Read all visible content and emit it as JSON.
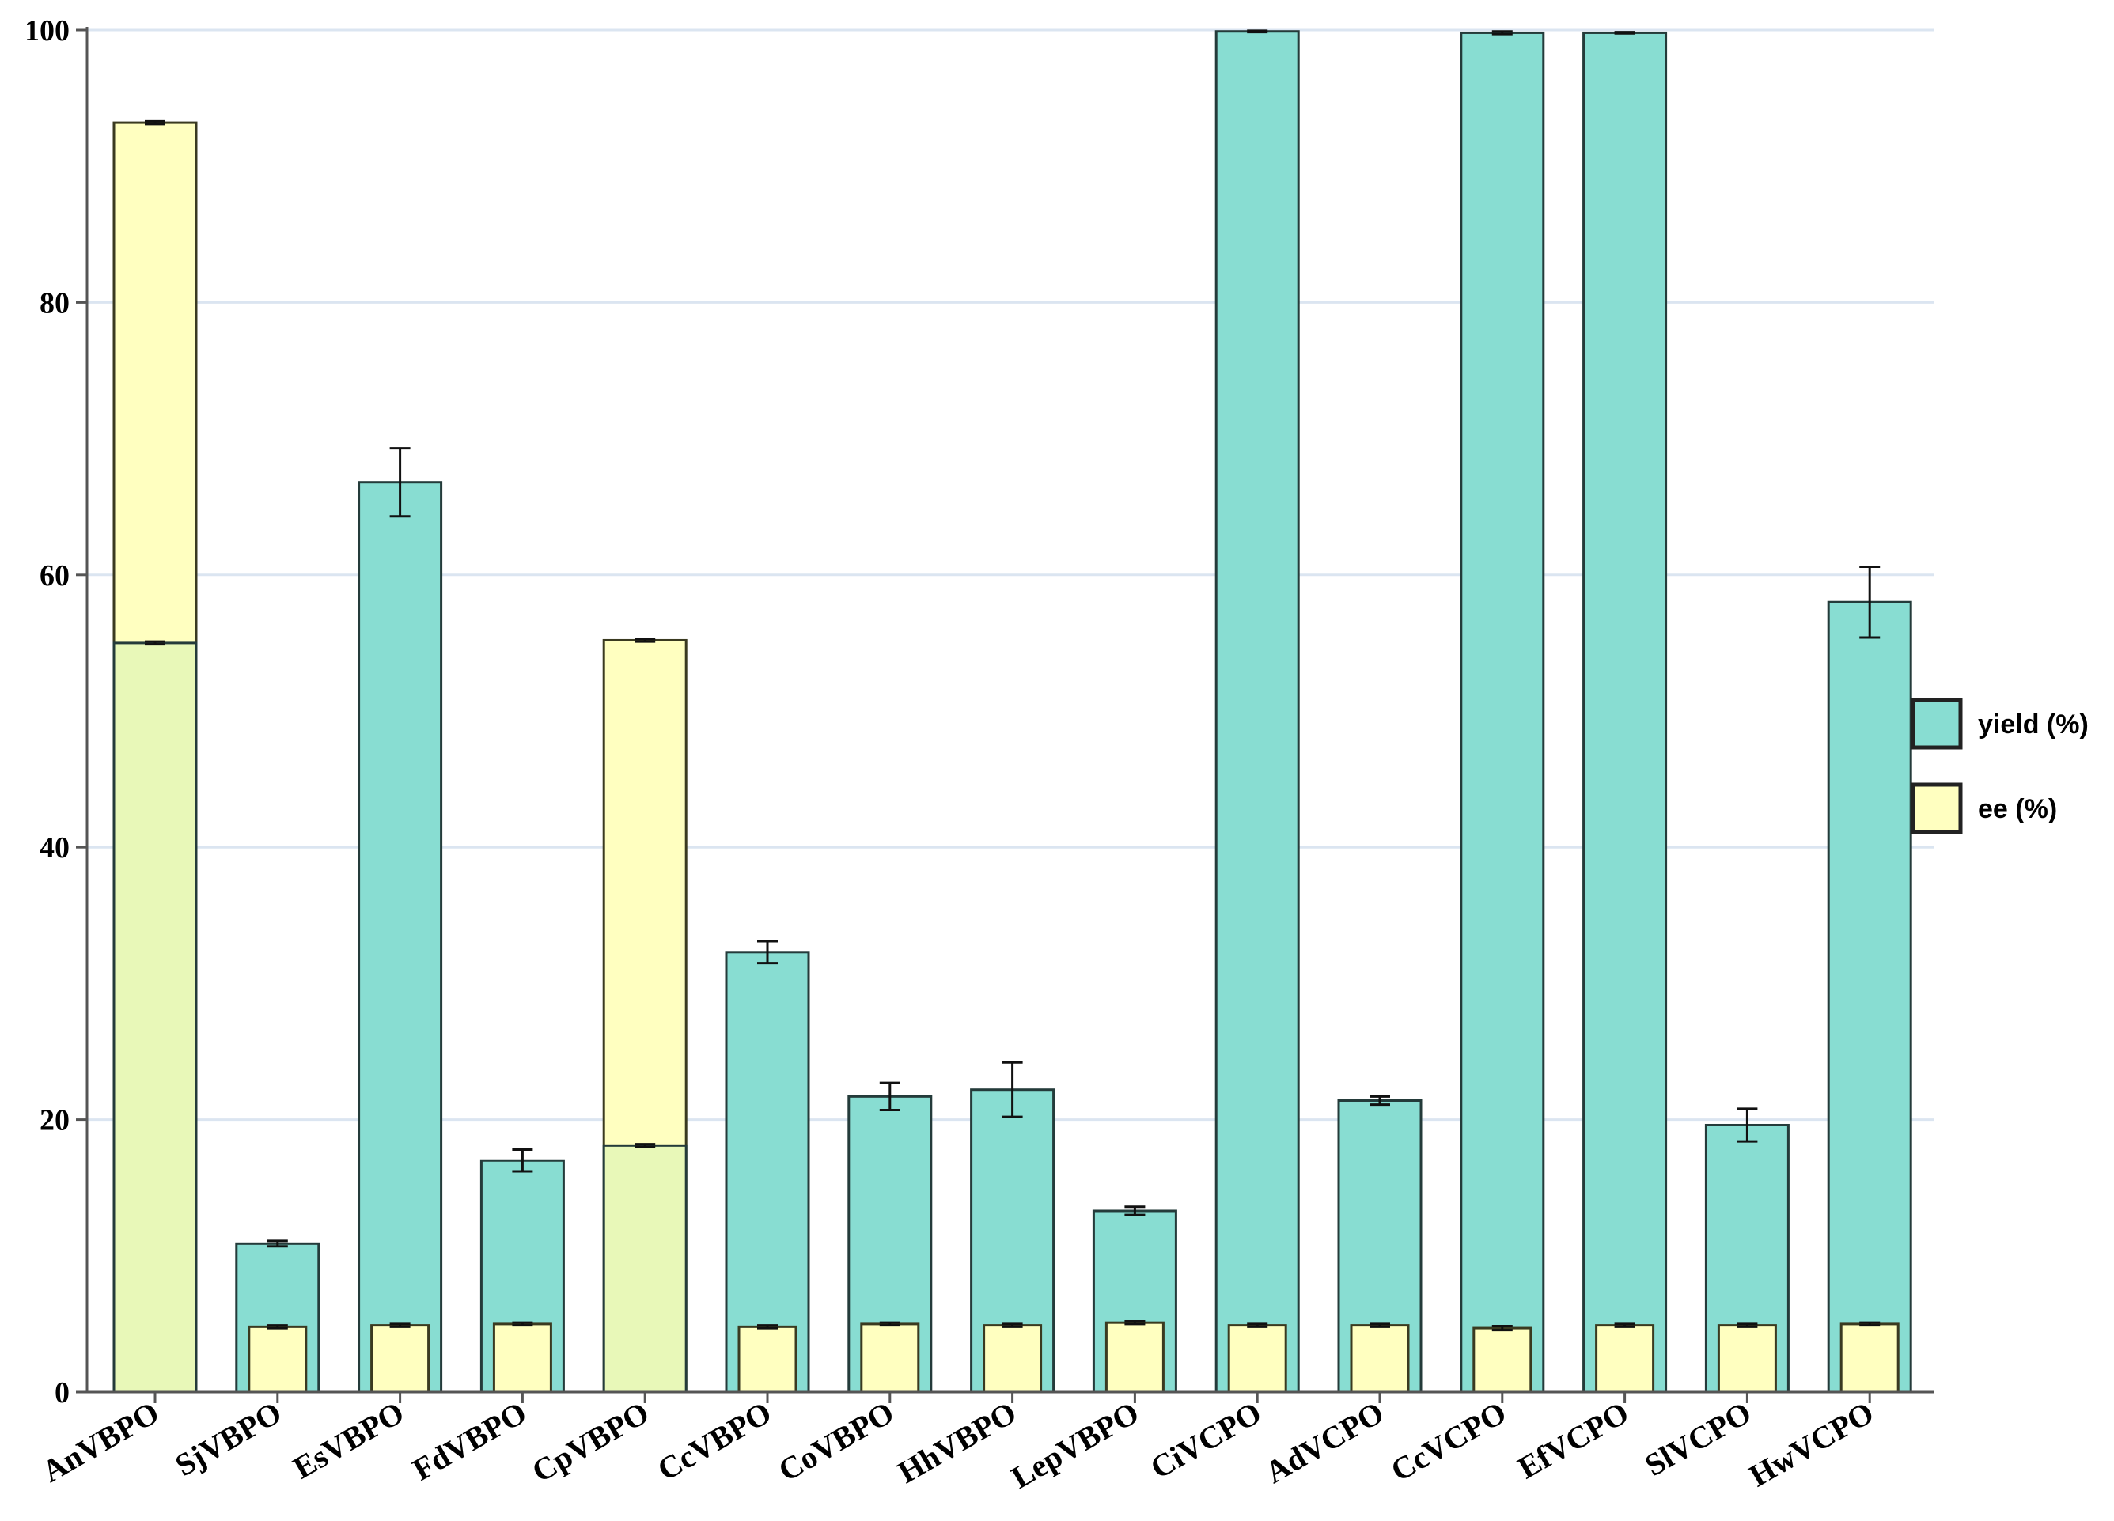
{
  "chart_data": {
    "type": "bar",
    "title": "",
    "xlabel": "",
    "ylabel": "",
    "ylim": [
      0,
      100
    ],
    "yticks": [
      "0",
      "20",
      "40",
      "60",
      "80",
      "100"
    ],
    "grid": "horizontal",
    "legend_position": "right",
    "categories": [
      "AnVBPO",
      "SjVBPO",
      "EsVBPO",
      "FdVBPO",
      "CpVBPO",
      "CcVBPO",
      "CoVBPO",
      "HhVBPO",
      "LepVBPO",
      "CiVCPO",
      "AdVCPO",
      "CcVCPO",
      "EfVCPO",
      "SlVCPO",
      "HwVCPO"
    ],
    "series": [
      {
        "name": "yield (%)",
        "color": "#88DDD2",
        "values": [
          55.0,
          10.9,
          66.8,
          17.0,
          18.1,
          32.3,
          21.7,
          22.2,
          13.3,
          99.9,
          21.4,
          99.8,
          99.8,
          19.6,
          58.0
        ],
        "errors": [
          0.1,
          0.2,
          2.5,
          0.8,
          0.1,
          0.8,
          1.0,
          2.0,
          0.3,
          0.05,
          0.3,
          0.1,
          0.05,
          1.2,
          2.6
        ]
      },
      {
        "name": "ee (%)",
        "color": "#FFFFC0",
        "values": [
          93.2,
          4.8,
          4.9,
          5.0,
          55.2,
          4.8,
          5.0,
          4.9,
          5.1,
          4.9,
          4.9,
          4.7,
          4.9,
          4.9,
          5.0
        ],
        "errors": [
          0.1,
          0.1,
          0.1,
          0.1,
          0.1,
          0.1,
          0.1,
          0.1,
          0.1,
          0.1,
          0.1,
          0.15,
          0.1,
          0.1,
          0.1
        ]
      }
    ]
  }
}
